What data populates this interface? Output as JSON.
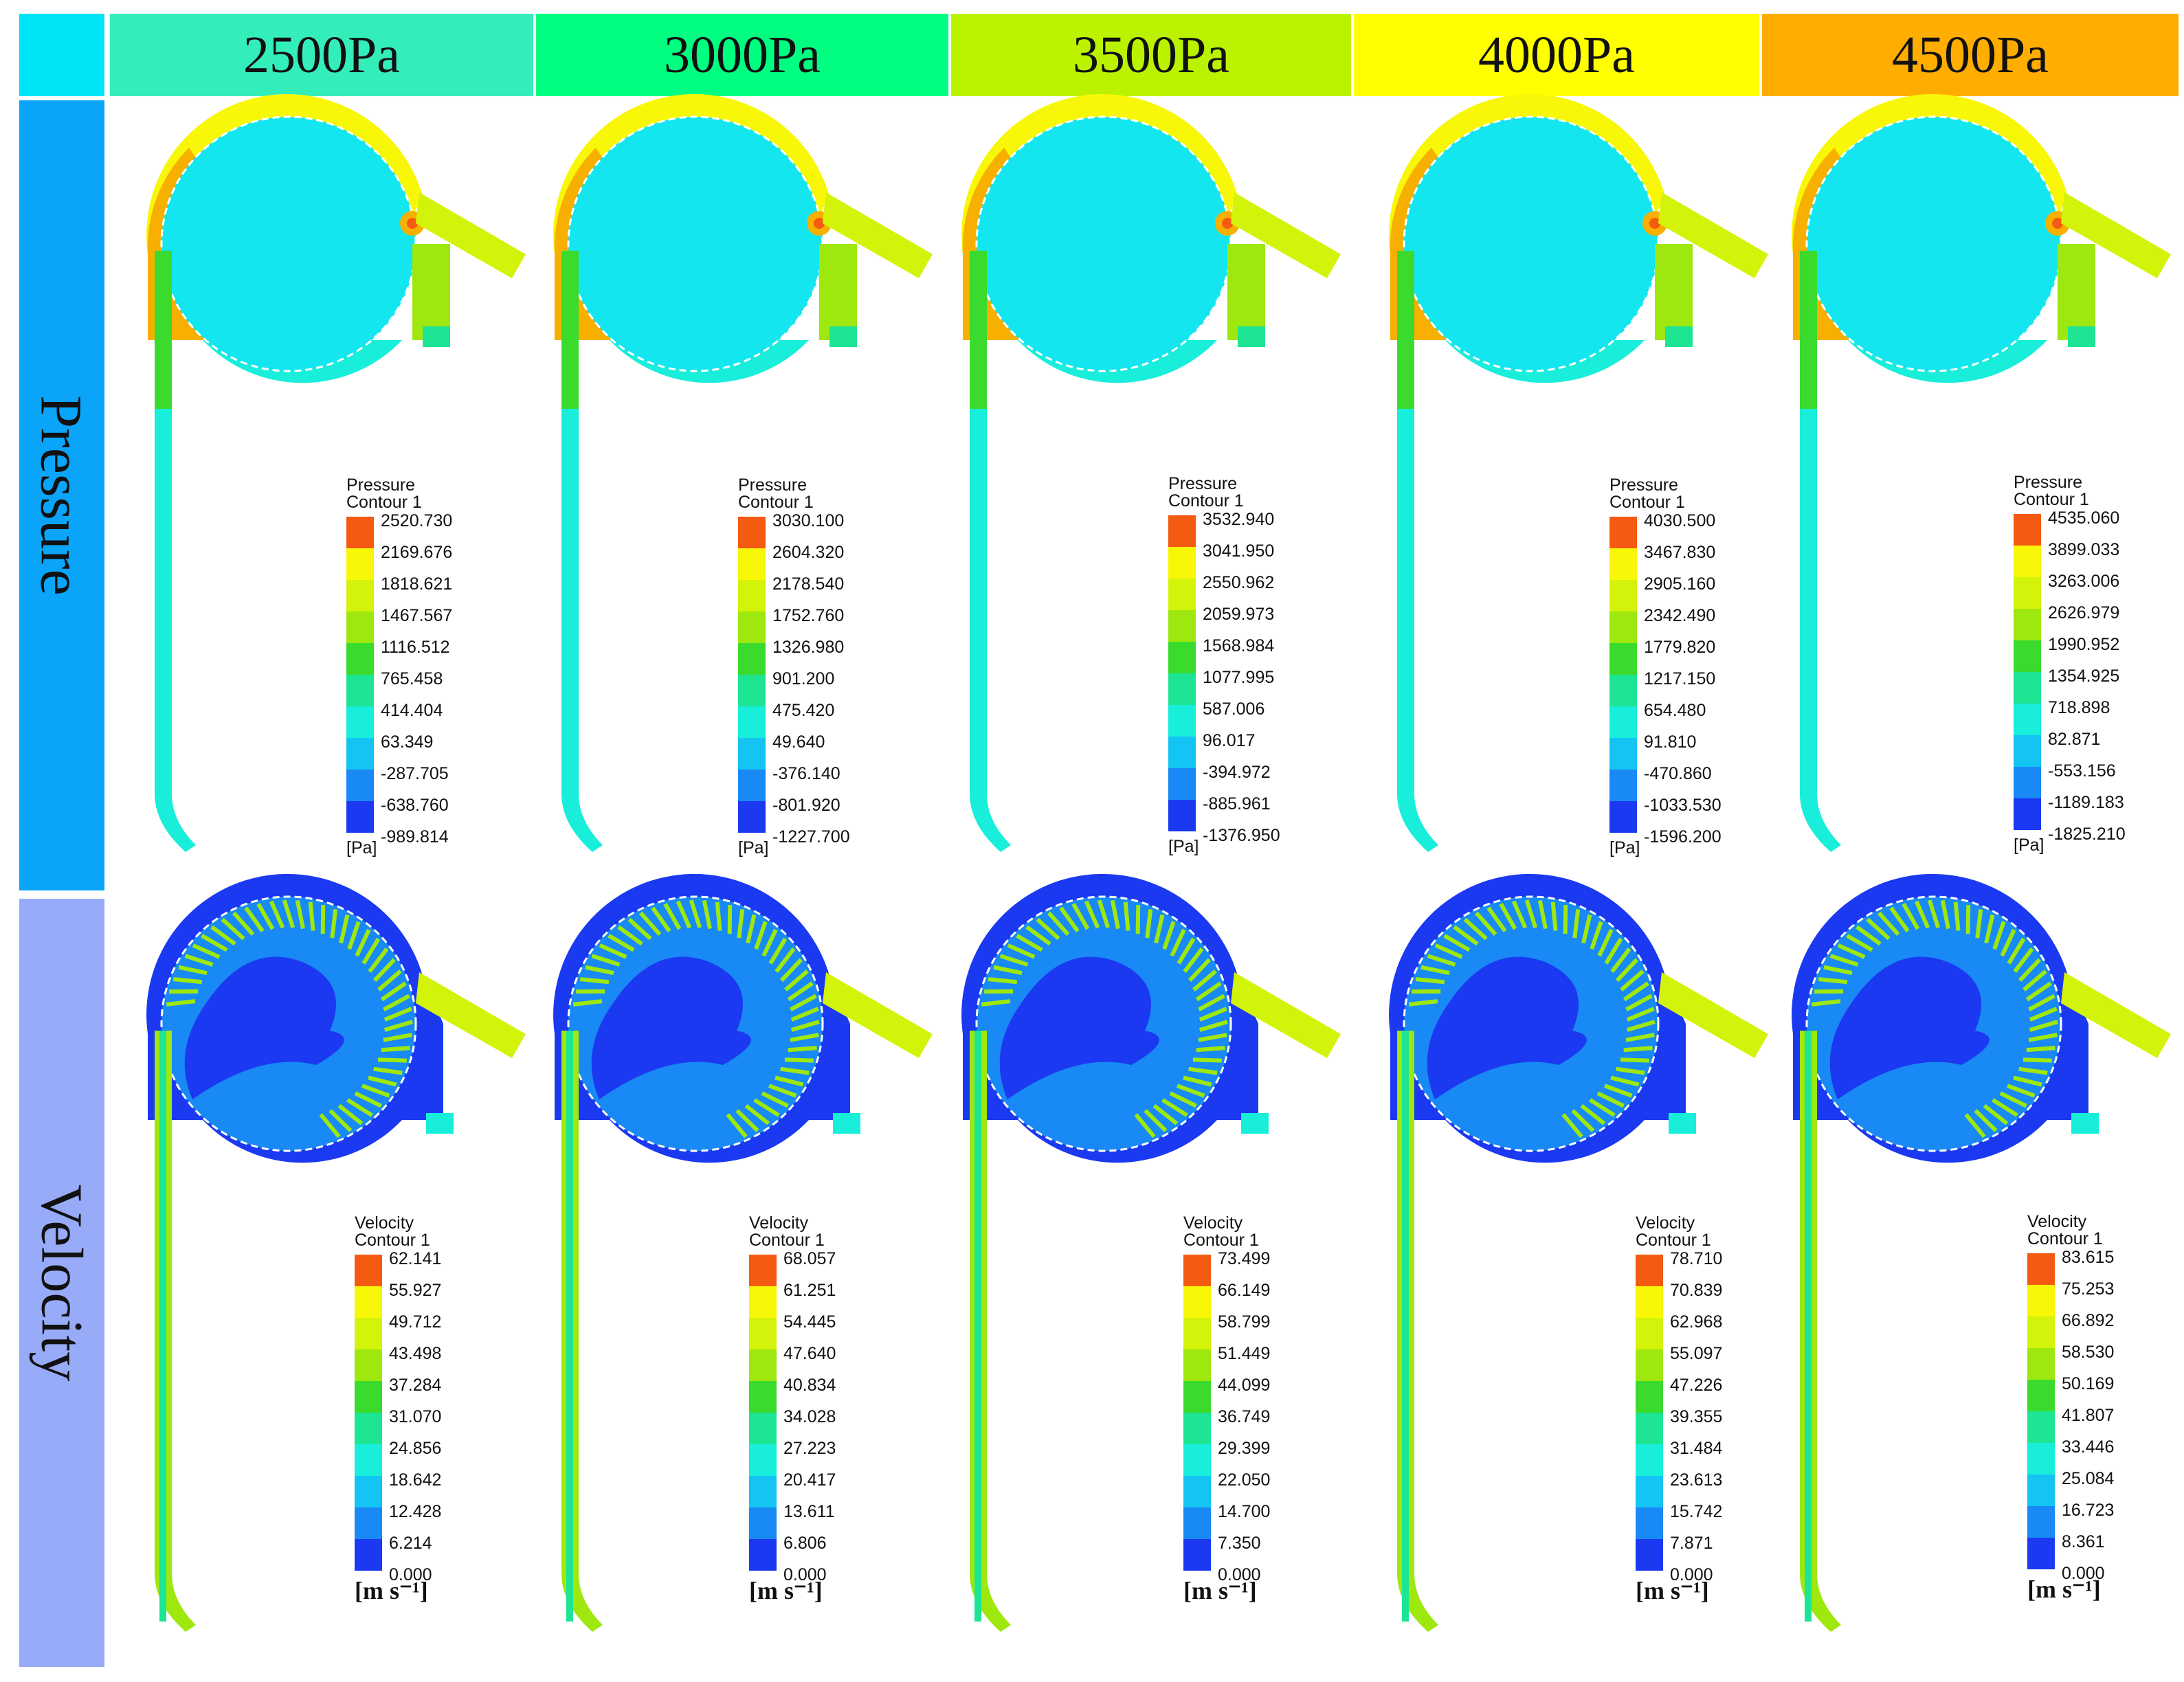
{
  "header": {
    "corner_color": "#00e5f5",
    "columns": [
      {
        "label": "2500Pa",
        "color": "#33eebb"
      },
      {
        "label": "3000Pa",
        "color": "#00ff80"
      },
      {
        "label": "3500Pa",
        "color": "#bbf200"
      },
      {
        "label": "4000Pa",
        "color": "#ffff00"
      },
      {
        "label": "4500Pa",
        "color": "#ffad00"
      }
    ]
  },
  "rows": [
    {
      "label": "Pressure",
      "color": "#0aa5f8"
    },
    {
      "label": "Velocity",
      "color": "#97abf8"
    }
  ],
  "colormap": [
    "#1b39f0",
    "#1889f5",
    "#14c4f2",
    "#18eeda",
    "#1de594",
    "#3adb2d",
    "#9ee70f",
    "#d4f30a",
    "#f8f708",
    "#f7b000",
    "#f55a12"
  ],
  "pressure_legends": [
    {
      "title": "Pressure",
      "subtitle": "Contour 1",
      "unit": "[Pa]",
      "ticks": [
        "2520.730",
        "2169.676",
        "1818.621",
        "1467.567",
        "1116.512",
        "765.458",
        "414.404",
        "63.349",
        "-287.705",
        "-638.760",
        "-989.814"
      ]
    },
    {
      "title": "Pressure",
      "subtitle": "Contour 1",
      "unit": "[Pa]",
      "ticks": [
        "3030.100",
        "2604.320",
        "2178.540",
        "1752.760",
        "1326.980",
        "901.200",
        "475.420",
        "49.640",
        "-376.140",
        "-801.920",
        "-1227.700"
      ]
    },
    {
      "title": "Pressure",
      "subtitle": "Contour 1",
      "unit": "[Pa]",
      "ticks": [
        "3532.940",
        "3041.950",
        "2550.962",
        "2059.973",
        "1568.984",
        "1077.995",
        "587.006",
        "96.017",
        "-394.972",
        "-885.961",
        "-1376.950"
      ]
    },
    {
      "title": "Pressure",
      "subtitle": "Contour 1",
      "unit": "[Pa]",
      "ticks": [
        "4030.500",
        "3467.830",
        "2905.160",
        "2342.490",
        "1779.820",
        "1217.150",
        "654.480",
        "91.810",
        "-470.860",
        "-1033.530",
        "-1596.200"
      ]
    },
    {
      "title": "Pressure",
      "subtitle": "Contour 1",
      "unit": "[Pa]",
      "ticks": [
        "4535.060",
        "3899.033",
        "3263.006",
        "2626.979",
        "1990.952",
        "1354.925",
        "718.898",
        "82.871",
        "-553.156",
        "-1189.183",
        "-1825.210"
      ]
    }
  ],
  "velocity_legends": [
    {
      "title": "Velocity",
      "subtitle": "Contour 1",
      "unit": "[m s⁻¹]",
      "ticks": [
        "62.141",
        "55.927",
        "49.712",
        "43.498",
        "37.284",
        "31.070",
        "24.856",
        "18.642",
        "12.428",
        "6.214",
        "0.000"
      ]
    },
    {
      "title": "Velocity",
      "subtitle": "Contour 1",
      "unit": "[m s⁻¹]",
      "ticks": [
        "68.057",
        "61.251",
        "54.445",
        "47.640",
        "40.834",
        "34.028",
        "27.223",
        "20.417",
        "13.611",
        "6.806",
        "0.000"
      ]
    },
    {
      "title": "Velocity",
      "subtitle": "Contour 1",
      "unit": "[m s⁻¹]",
      "ticks": [
        "73.499",
        "66.149",
        "58.799",
        "51.449",
        "44.099",
        "36.749",
        "29.399",
        "22.050",
        "14.700",
        "7.350",
        "0.000"
      ]
    },
    {
      "title": "Velocity",
      "subtitle": "Contour 1",
      "unit": "[m s⁻¹]",
      "ticks": [
        "78.710",
        "70.839",
        "62.968",
        "55.097",
        "47.226",
        "39.355",
        "31.484",
        "23.613",
        "15.742",
        "7.871",
        "0.000"
      ]
    },
    {
      "title": "Velocity",
      "subtitle": "Contour 1",
      "unit": "[m s⁻¹]",
      "ticks": [
        "83.615",
        "75.253",
        "66.892",
        "58.530",
        "50.169",
        "41.807",
        "33.446",
        "25.084",
        "16.723",
        "8.361",
        "0.000"
      ]
    }
  ]
}
